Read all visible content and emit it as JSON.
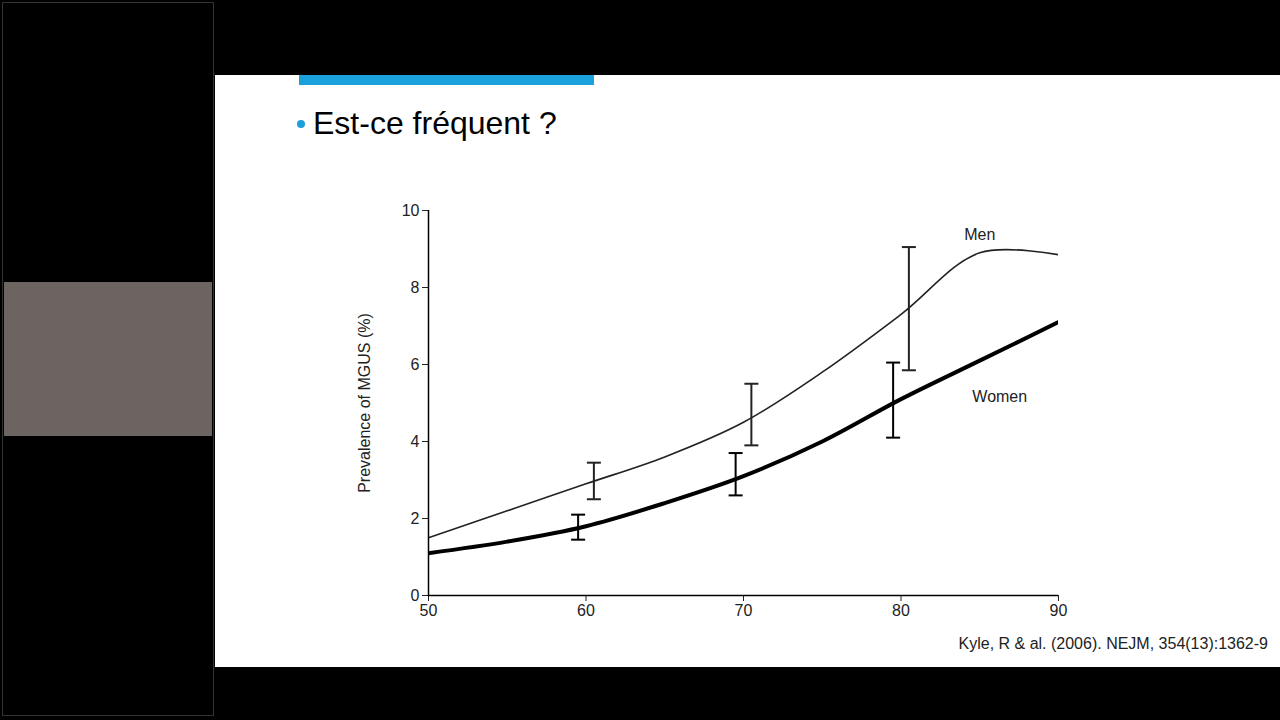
{
  "chart_data": {
    "type": "line",
    "title": "Est-ce fréquent ?",
    "caption": "Kyle, R & al. (2006). NEJM, 354(13):1362-9",
    "y_label": "Prevalence of MGUS (%)",
    "x": [
      50,
      55,
      60,
      65,
      70,
      75,
      80,
      85,
      90
    ],
    "series": [
      {
        "name": "Men",
        "color": "#222222",
        "line_style": "solid",
        "values": [
          1.5,
          2.2,
          2.9,
          3.6,
          4.5,
          5.8,
          7.3,
          8.9,
          8.85
        ],
        "error_bars": {
          "x": [
            60.5,
            70.5,
            80.5
          ],
          "low": [
            2.5,
            3.9,
            5.85
          ],
          "high": [
            3.45,
            5.5,
            9.05
          ]
        }
      },
      {
        "name": "Women",
        "color": "#000000",
        "line_style": "solid",
        "values": [
          1.1,
          1.4,
          1.8,
          2.4,
          3.1,
          4.0,
          5.1,
          6.1,
          7.1
        ],
        "error_bars": {
          "x": [
            59.5,
            69.5,
            79.5
          ],
          "low": [
            1.45,
            2.6,
            4.1
          ],
          "high": [
            2.1,
            3.7,
            6.05
          ]
        }
      }
    ],
    "xlim": [
      50,
      90
    ],
    "xticks": [
      50,
      60,
      70,
      80,
      90
    ],
    "ylim": [
      0,
      10
    ],
    "yticks": [
      0,
      2,
      4,
      6,
      8,
      10
    ],
    "grid": false
  }
}
